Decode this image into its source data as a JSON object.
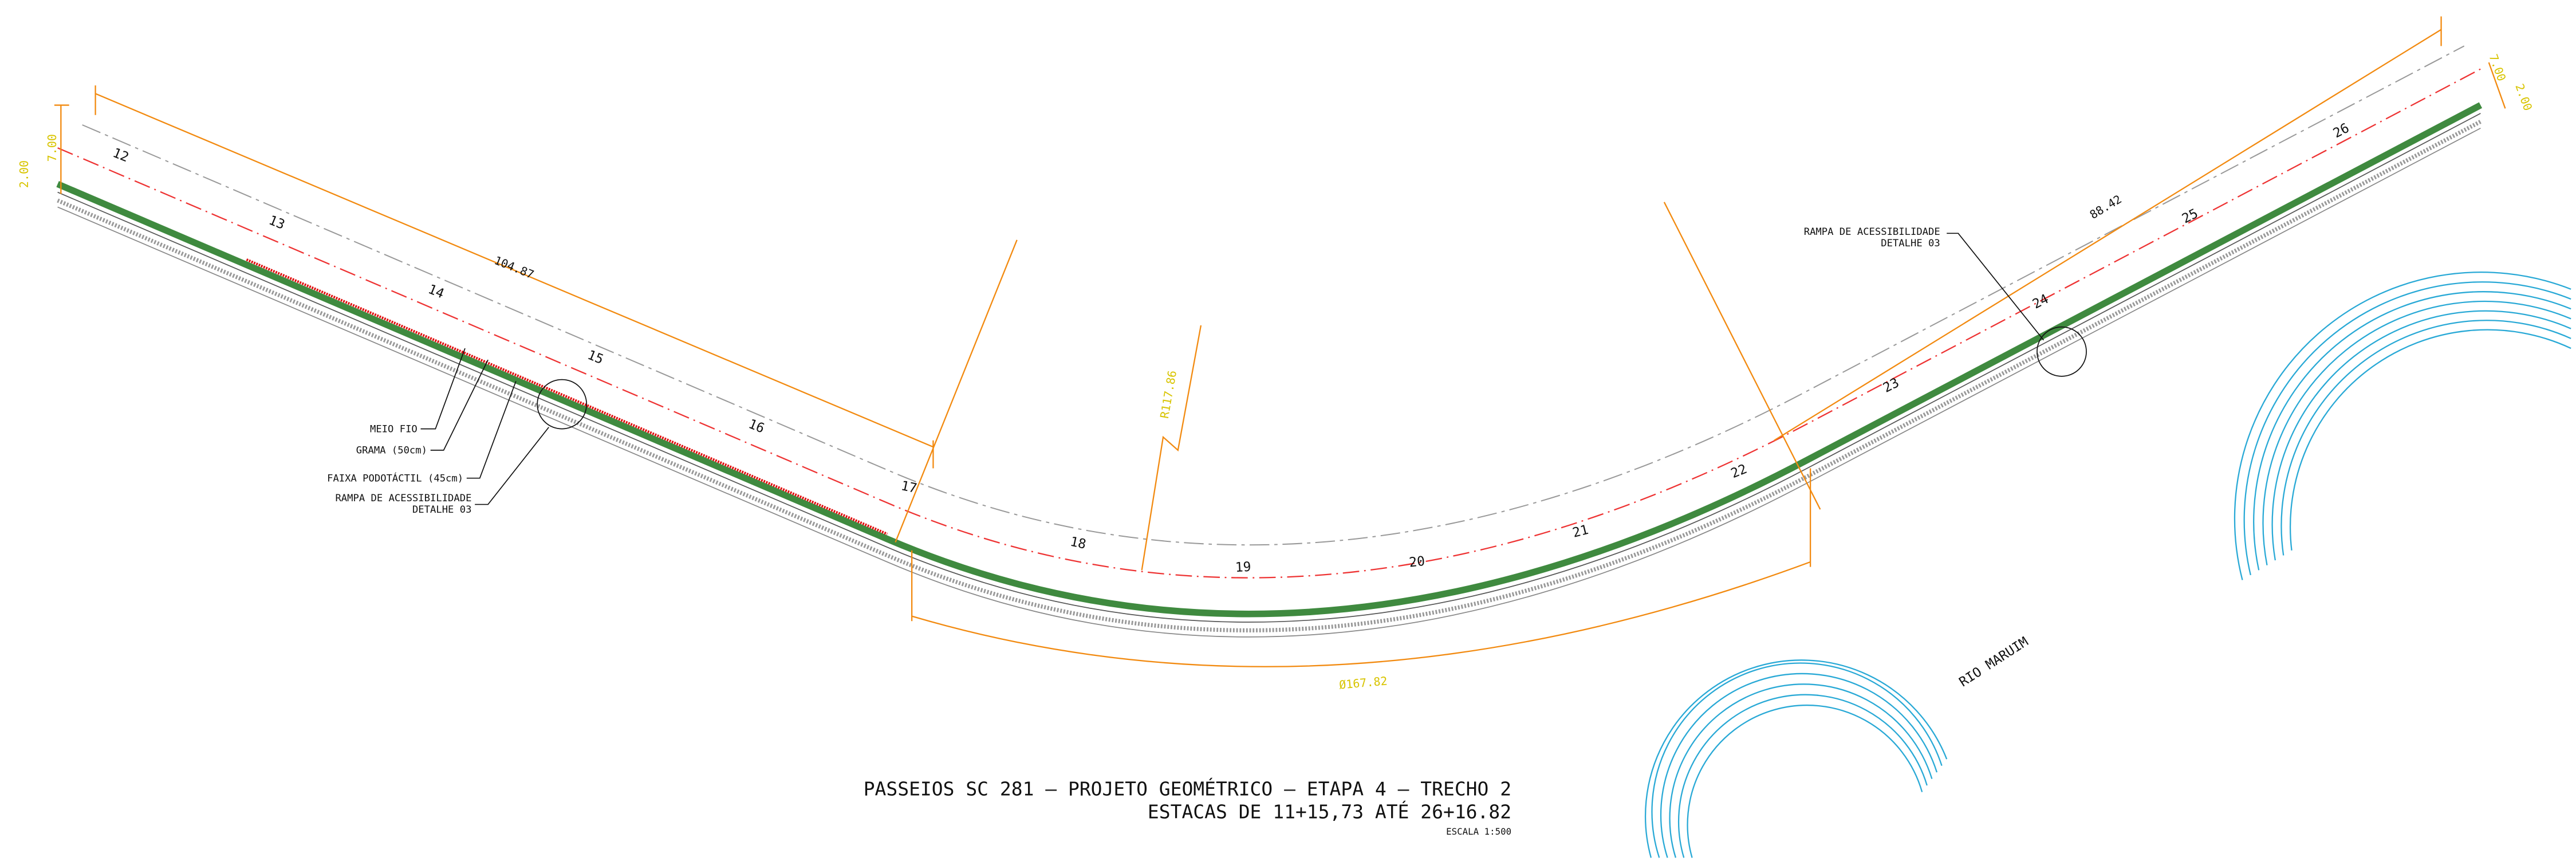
{
  "stations": [
    "12",
    "13",
    "14",
    "15",
    "16",
    "17",
    "18",
    "19",
    "20",
    "21",
    "22",
    "23",
    "24",
    "25",
    "26"
  ],
  "dimensions": {
    "left_tangent": "104.87",
    "right_tangent": "88.42",
    "radius": "R117.86",
    "curve_length": "Ø167.82",
    "left_width_outer": "7.00",
    "left_width_inner": "2.00",
    "right_width_outer": "7.00",
    "right_width_inner": "2.00"
  },
  "annotations": {
    "meio_fio": "MEIO FIO",
    "grama": "GRAMA (50cm)",
    "faixa": "FAIXA PODOTÁCTIL (45cm)",
    "rampa_left_1": "RAMPA DE ACESSIBILIDADE",
    "rampa_left_2": "DETALHE 03",
    "rampa_right_1": "RAMPA DE ACESSIBILIDADE",
    "rampa_right_2": "DETALHE 03",
    "river": "RIO MARUIM"
  },
  "title_block": {
    "line1": "PASSEIOS SC 281 – PROJETO GEOMÉTRICO – ETAPA 4 – TRECHO 2",
    "line2": "ESTACAS DE 11+15,73 ATÉ 26+16.82",
    "scale": "ESCALA 1:500"
  }
}
